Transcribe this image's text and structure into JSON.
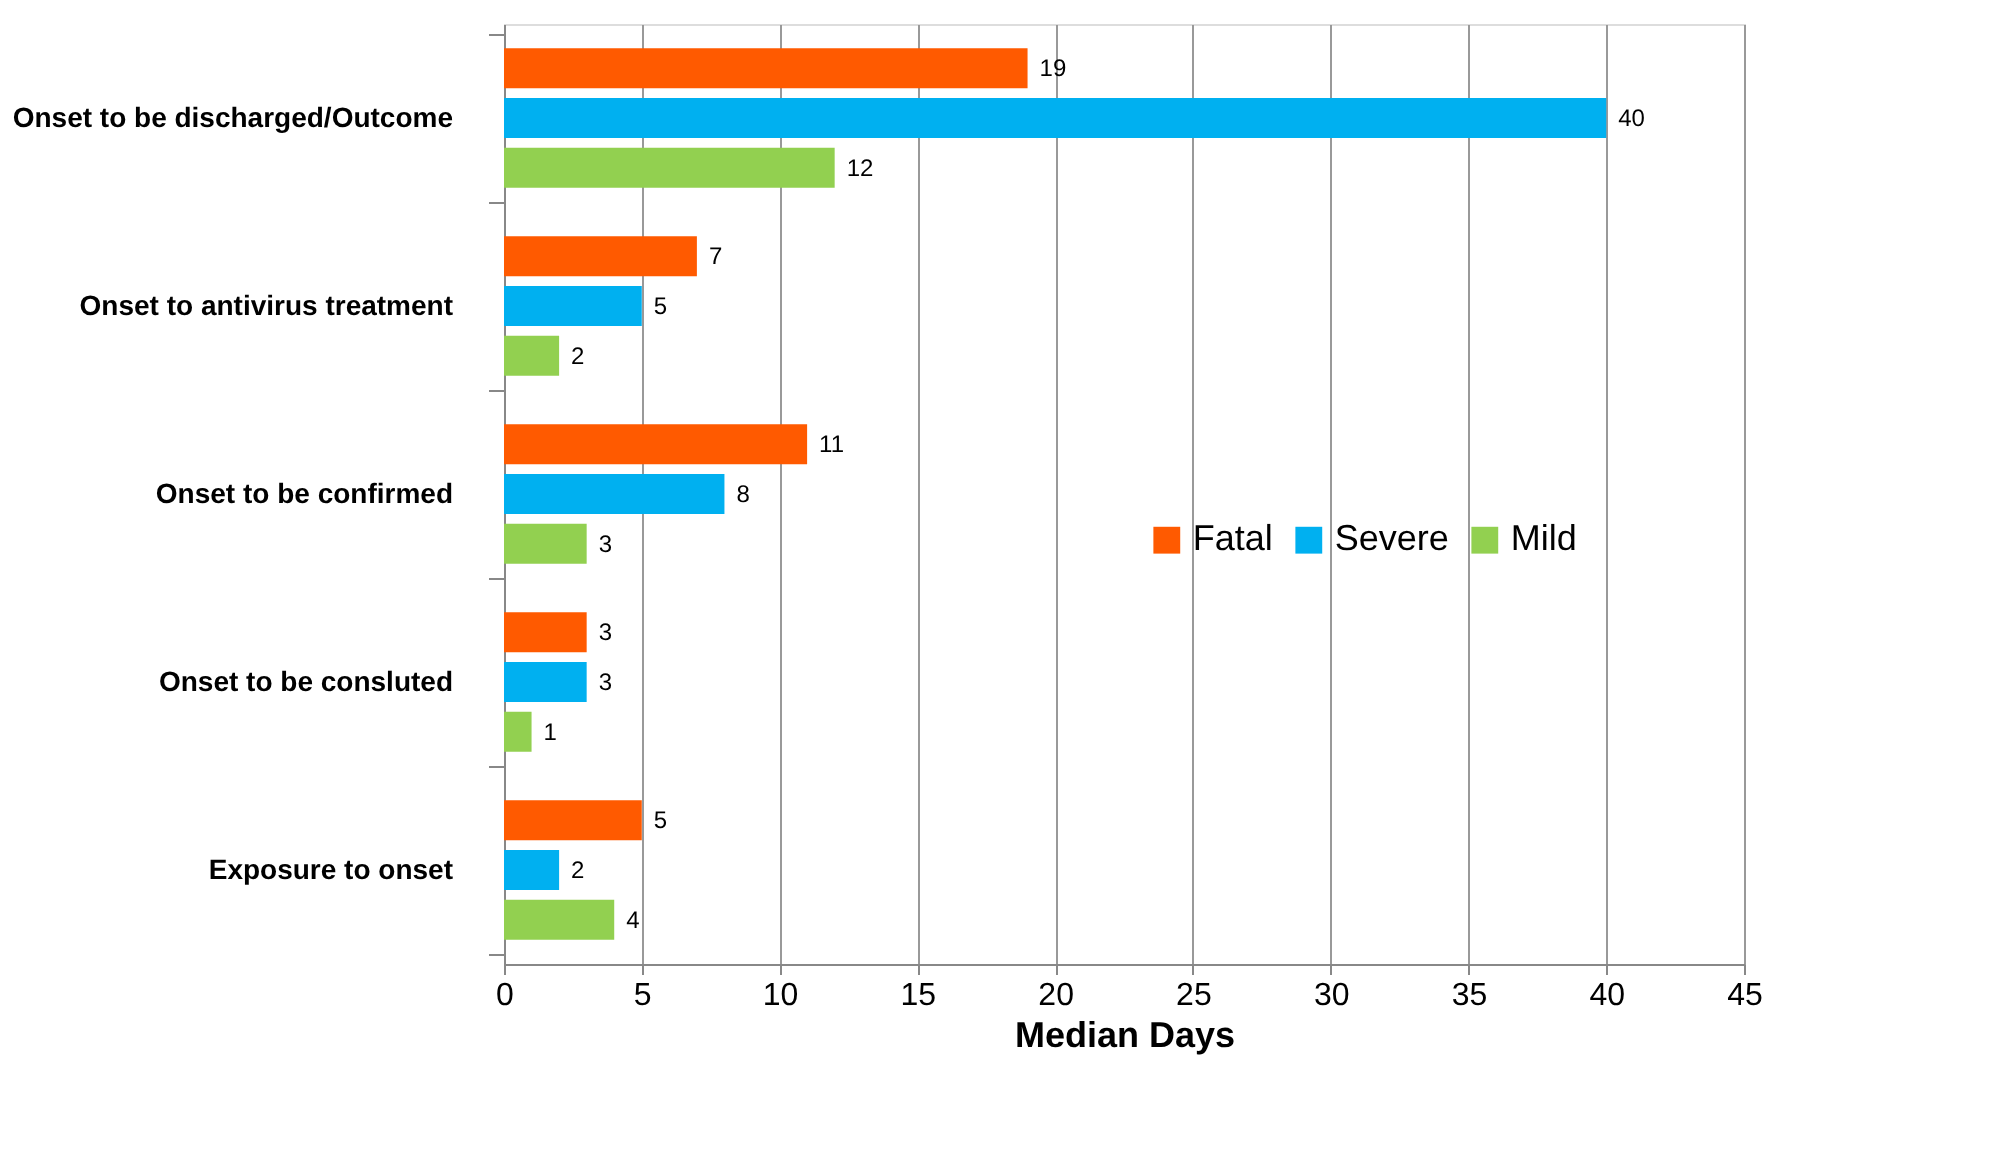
{
  "chart_data": {
    "type": "bar",
    "orientation": "horizontal",
    "xlabel": "Median Days",
    "categories": [
      "Onset to be discharged/Outcome",
      "Onset to antivirus treatment",
      "Onset to be confirmed",
      "Onset to be consluted",
      "Exposure to onset"
    ],
    "series": [
      {
        "name": "Fatal",
        "color": "#ff5a00",
        "values": [
          19,
          7,
          11,
          3,
          5
        ]
      },
      {
        "name": "Severe",
        "color": "#00b0f0",
        "values": [
          40,
          5,
          8,
          3,
          2
        ]
      },
      {
        "name": "Mild",
        "color": "#92d050",
        "values": [
          12,
          2,
          3,
          1,
          4
        ]
      }
    ],
    "xlim": [
      0,
      45
    ],
    "xticks": [
      0,
      5,
      10,
      15,
      20,
      25,
      30,
      35,
      40,
      45
    ],
    "grid": "x",
    "legend": "right",
    "data_labels": true
  }
}
